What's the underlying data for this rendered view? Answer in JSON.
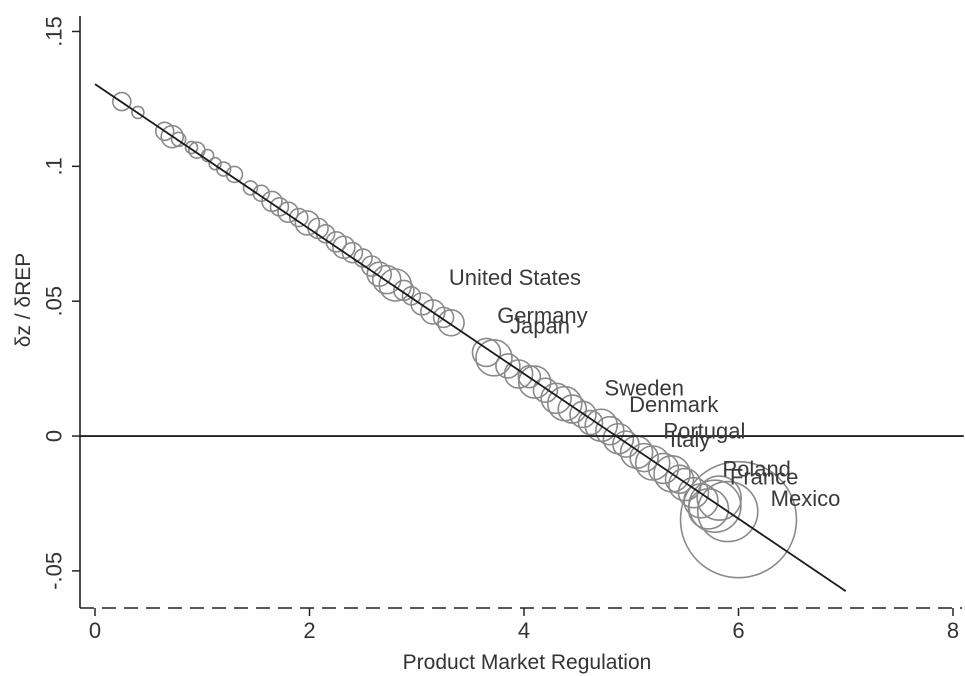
{
  "chart_data": {
    "type": "scatter",
    "title": "",
    "xlabel": "Product Market Regulation",
    "ylabel": "δz / δREP",
    "xlim": [
      0,
      8
    ],
    "ylim": [
      -0.0645,
      0.155
    ],
    "x_ticks": [
      0,
      2,
      4,
      6,
      8
    ],
    "x_tick_labels": [
      "0",
      "2",
      "4",
      "6",
      "8"
    ],
    "y_ticks": [
      -0.05,
      0,
      0.05,
      0.1,
      0.15
    ],
    "y_tick_labels": [
      "-.05",
      "0",
      ".05",
      ".1",
      ".15"
    ],
    "grid": false,
    "legend": "none",
    "colors": {
      "points": "#8a8a8a",
      "line": "#1a1a1a",
      "axis": "#222222"
    },
    "fit_line": {
      "x": [
        0.0,
        7.0
      ],
      "y": [
        0.1305,
        -0.0575
      ]
    },
    "zero_line": {
      "y": 0,
      "x_from": 0,
      "x_to": 8.1
    },
    "points": [
      {
        "x": 0.25,
        "y": 0.124,
        "s": 9
      },
      {
        "x": 0.4,
        "y": 0.12,
        "s": 6
      },
      {
        "x": 0.65,
        "y": 0.113,
        "s": 9
      },
      {
        "x": 0.72,
        "y": 0.111,
        "s": 11
      },
      {
        "x": 0.78,
        "y": 0.11,
        "s": 7
      },
      {
        "x": 0.9,
        "y": 0.107,
        "s": 6
      },
      {
        "x": 0.95,
        "y": 0.106,
        "s": 8
      },
      {
        "x": 1.05,
        "y": 0.104,
        "s": 6
      },
      {
        "x": 1.12,
        "y": 0.101,
        "s": 6
      },
      {
        "x": 1.2,
        "y": 0.099,
        "s": 7
      },
      {
        "x": 1.3,
        "y": 0.097,
        "s": 8
      },
      {
        "x": 1.45,
        "y": 0.092,
        "s": 7
      },
      {
        "x": 1.55,
        "y": 0.09,
        "s": 8
      },
      {
        "x": 1.65,
        "y": 0.087,
        "s": 10
      },
      {
        "x": 1.72,
        "y": 0.085,
        "s": 9
      },
      {
        "x": 1.8,
        "y": 0.083,
        "s": 10
      },
      {
        "x": 1.9,
        "y": 0.081,
        "s": 9
      },
      {
        "x": 1.98,
        "y": 0.079,
        "s": 12
      },
      {
        "x": 2.08,
        "y": 0.077,
        "s": 10
      },
      {
        "x": 2.15,
        "y": 0.075,
        "s": 9
      },
      {
        "x": 2.25,
        "y": 0.072,
        "s": 10
      },
      {
        "x": 2.32,
        "y": 0.07,
        "s": 11
      },
      {
        "x": 2.4,
        "y": 0.068,
        "s": 10
      },
      {
        "x": 2.5,
        "y": 0.066,
        "s": 9
      },
      {
        "x": 2.58,
        "y": 0.063,
        "s": 10
      },
      {
        "x": 2.65,
        "y": 0.06,
        "s": 12
      },
      {
        "x": 2.72,
        "y": 0.058,
        "s": 14
      },
      {
        "x": 2.8,
        "y": 0.056,
        "s": 16
      },
      {
        "x": 2.88,
        "y": 0.054,
        "s": 10
      },
      {
        "x": 2.95,
        "y": 0.052,
        "s": 9
      },
      {
        "x": 3.05,
        "y": 0.049,
        "s": 11
      },
      {
        "x": 3.15,
        "y": 0.046,
        "s": 12
      },
      {
        "x": 3.25,
        "y": 0.044,
        "s": 10
      },
      {
        "x": 3.32,
        "y": 0.042,
        "s": 13
      },
      {
        "x": 3.65,
        "y": 0.031,
        "s": 14
      },
      {
        "x": 3.72,
        "y": 0.029,
        "s": 18
      },
      {
        "x": 3.85,
        "y": 0.026,
        "s": 12
      },
      {
        "x": 3.95,
        "y": 0.023,
        "s": 14
      },
      {
        "x": 4.05,
        "y": 0.022,
        "s": 11
      },
      {
        "x": 4.1,
        "y": 0.02,
        "s": 16
      },
      {
        "x": 4.2,
        "y": 0.017,
        "s": 12
      },
      {
        "x": 4.3,
        "y": 0.014,
        "s": 15
      },
      {
        "x": 4.38,
        "y": 0.012,
        "s": 17
      },
      {
        "x": 4.45,
        "y": 0.01,
        "s": 14
      },
      {
        "x": 4.55,
        "y": 0.008,
        "s": 13
      },
      {
        "x": 4.62,
        "y": 0.005,
        "s": 12
      },
      {
        "x": 4.72,
        "y": 0.004,
        "s": 16
      },
      {
        "x": 4.8,
        "y": 0.002,
        "s": 14
      },
      {
        "x": 4.88,
        "y": -0.001,
        "s": 15
      },
      {
        "x": 4.95,
        "y": -0.003,
        "s": 13
      },
      {
        "x": 5.05,
        "y": -0.006,
        "s": 16
      },
      {
        "x": 5.12,
        "y": -0.008,
        "s": 14
      },
      {
        "x": 5.2,
        "y": -0.01,
        "s": 17
      },
      {
        "x": 5.3,
        "y": -0.012,
        "s": 15
      },
      {
        "x": 5.38,
        "y": -0.014,
        "s": 18
      },
      {
        "x": 5.45,
        "y": -0.016,
        "s": 14
      },
      {
        "x": 5.5,
        "y": -0.018,
        "s": 16
      },
      {
        "x": 5.58,
        "y": -0.021,
        "s": 15
      },
      {
        "x": 5.65,
        "y": -0.024,
        "s": 17
      },
      {
        "x": 5.72,
        "y": -0.027,
        "s": 20
      },
      {
        "x": 5.78,
        "y": -0.026,
        "s": 26
      },
      {
        "x": 5.82,
        "y": -0.023,
        "s": 22
      },
      {
        "x": 5.9,
        "y": -0.028,
        "s": 30
      },
      {
        "x": 6.0,
        "y": -0.031,
        "s": 58
      }
    ],
    "annotations": [
      {
        "text": "United States",
        "x": 3.3,
        "y": 0.056
      },
      {
        "text": "Germany",
        "x": 3.75,
        "y": 0.042
      },
      {
        "text": "Japan",
        "x": 3.87,
        "y": 0.038
      },
      {
        "text": "Sweden",
        "x": 4.75,
        "y": 0.015
      },
      {
        "text": "Denmark",
        "x": 4.98,
        "y": 0.009
      },
      {
        "text": "Portugal",
        "x": 5.3,
        "y": -0.001
      },
      {
        "text": "Italy",
        "x": 5.36,
        "y": -0.004
      },
      {
        "text": "Poland",
        "x": 5.85,
        "y": -0.015
      },
      {
        "text": "France",
        "x": 5.92,
        "y": -0.018
      },
      {
        "text": "Mexico",
        "x": 6.3,
        "y": -0.026
      }
    ]
  }
}
